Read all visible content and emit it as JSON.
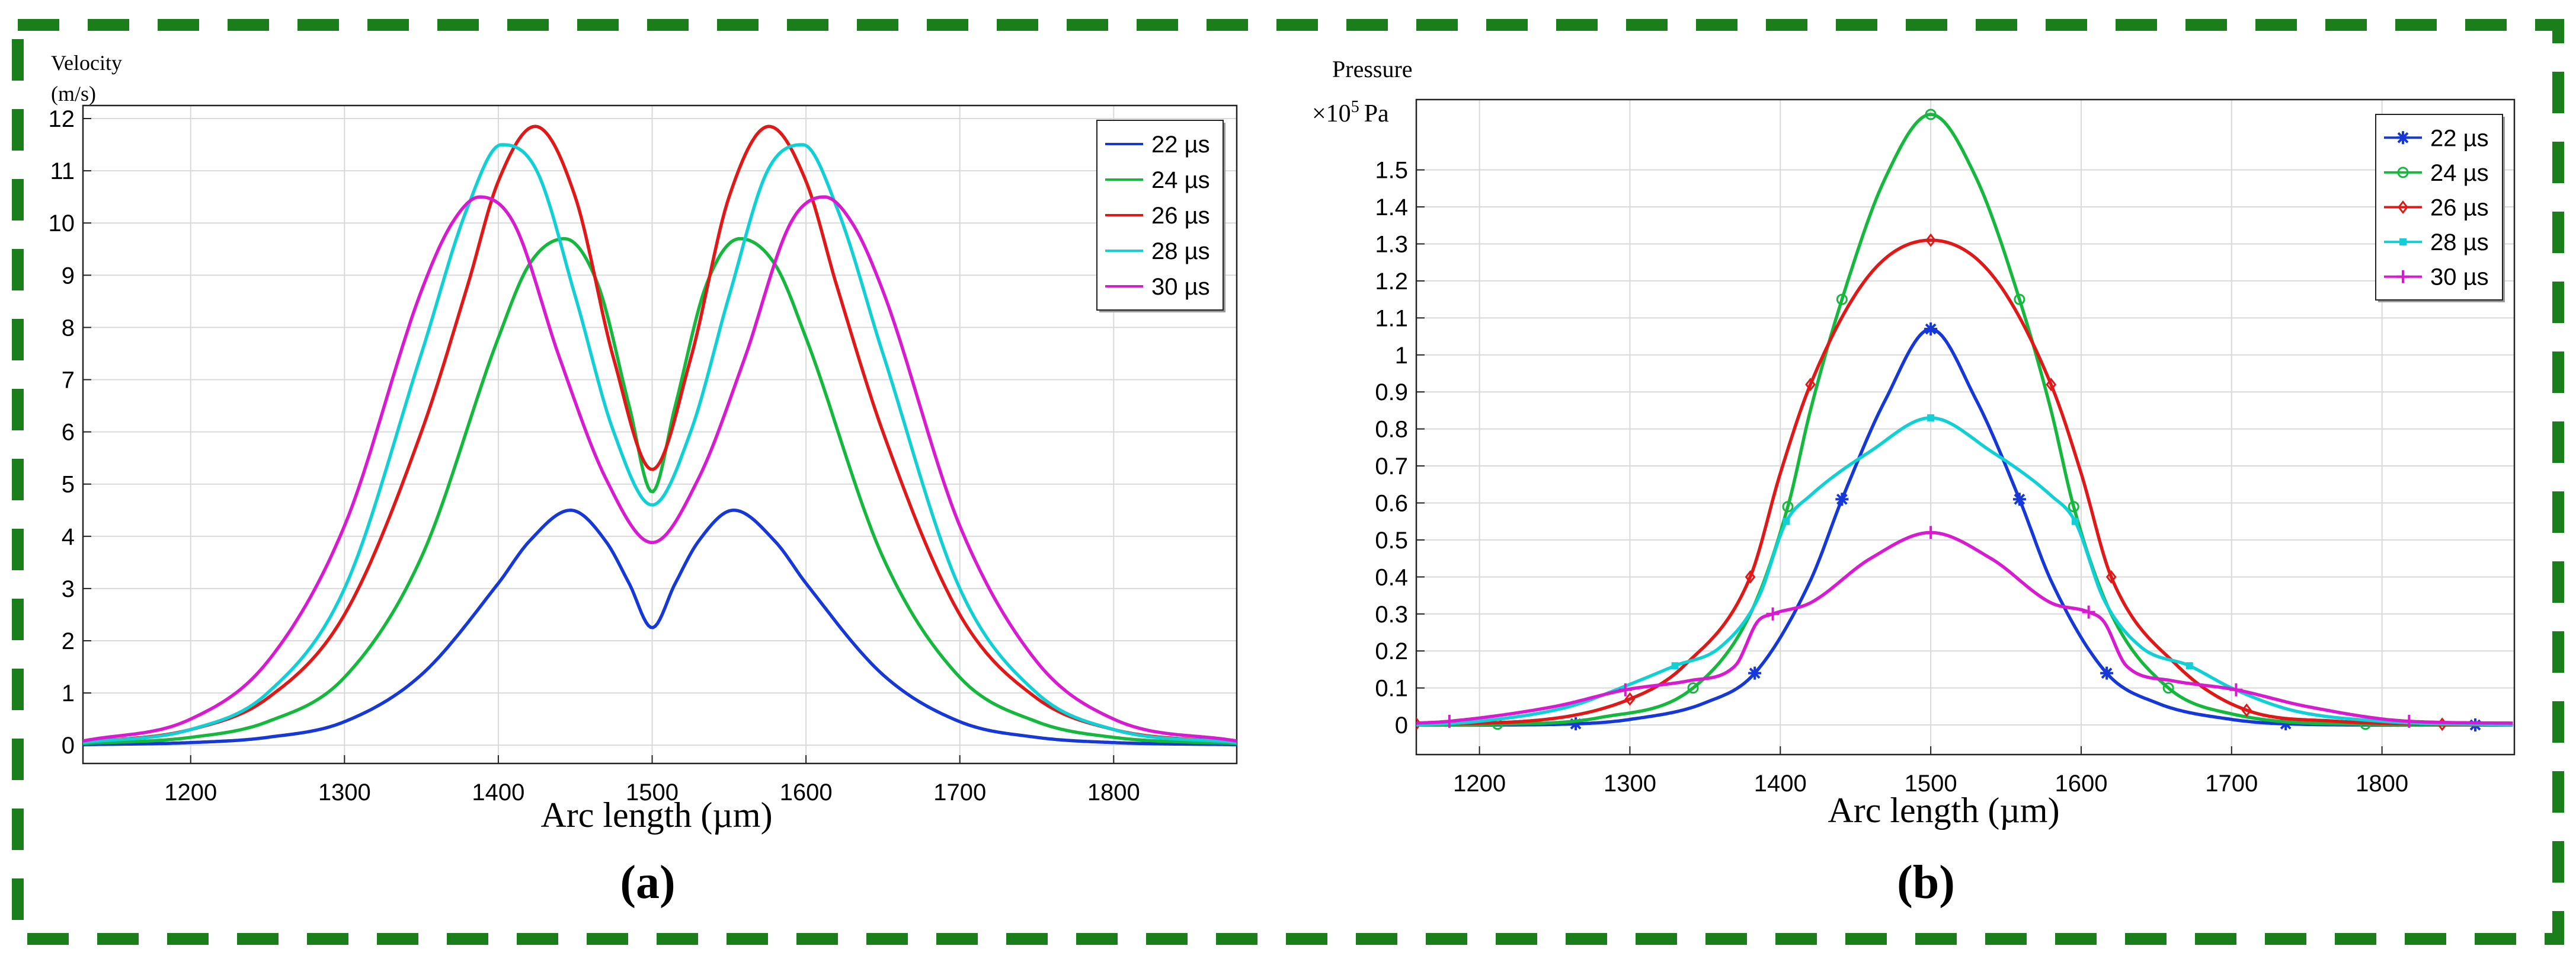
{
  "colors": {
    "border": "#1a7f1a",
    "grid": "#d9d9d9",
    "series": [
      "#1638d8",
      "#14b83c",
      "#e01818",
      "#10d0d6",
      "#d81ad0"
    ]
  },
  "chart_data": [
    {
      "id": "a",
      "type": "line",
      "panel_label": "(a)",
      "ylabel_line1": "Velocity",
      "ylabel_line2": "(m/s)",
      "xlabel": "Arc length (µm)",
      "xlim": [
        1130,
        1880
      ],
      "ylim": [
        -0.35,
        12.25
      ],
      "xticks": [
        1200,
        1300,
        1400,
        1500,
        1600,
        1700,
        1800
      ],
      "yticks": [
        0,
        1,
        2,
        3,
        4,
        5,
        6,
        7,
        8,
        9,
        10,
        11,
        12
      ],
      "legend_position": "top-right",
      "series": [
        {
          "name": "22 µs",
          "x": [
            1130,
            1200,
            1250,
            1300,
            1350,
            1400,
            1420,
            1447,
            1470,
            1485,
            1500,
            1515,
            1530,
            1553,
            1580,
            1600,
            1650,
            1700,
            1750,
            1800,
            1880
          ],
          "values": [
            0.01,
            0.05,
            0.15,
            0.45,
            1.35,
            3.1,
            3.9,
            4.5,
            3.9,
            3.1,
            2.25,
            3.1,
            3.9,
            4.5,
            3.9,
            3.1,
            1.35,
            0.45,
            0.15,
            0.05,
            0.01
          ]
        },
        {
          "name": "24 µs",
          "x": [
            1130,
            1200,
            1250,
            1300,
            1350,
            1400,
            1420,
            1443,
            1465,
            1485,
            1500,
            1515,
            1535,
            1557,
            1580,
            1600,
            1650,
            1700,
            1750,
            1800,
            1880
          ],
          "values": [
            0.03,
            0.15,
            0.45,
            1.3,
            3.6,
            7.8,
            9.2,
            9.7,
            8.8,
            6.5,
            4.85,
            6.5,
            8.8,
            9.7,
            9.2,
            7.8,
            3.6,
            1.3,
            0.45,
            0.15,
            0.03
          ]
        },
        {
          "name": "26 µs",
          "x": [
            1130,
            1200,
            1250,
            1300,
            1350,
            1380,
            1400,
            1424,
            1450,
            1475,
            1500,
            1525,
            1550,
            1576,
            1600,
            1620,
            1650,
            1700,
            1750,
            1800,
            1880
          ],
          "values": [
            0.05,
            0.3,
            0.9,
            2.5,
            6.0,
            8.8,
            10.8,
            11.85,
            10.5,
            7.4,
            5.28,
            7.4,
            10.5,
            11.85,
            10.8,
            8.8,
            6.0,
            2.5,
            0.9,
            0.3,
            0.05
          ]
        },
        {
          "name": "28 µs",
          "x": [
            1130,
            1200,
            1250,
            1300,
            1350,
            1380,
            1402,
            1425,
            1450,
            1475,
            1500,
            1525,
            1550,
            1575,
            1598,
            1620,
            1650,
            1700,
            1750,
            1800,
            1880
          ],
          "values": [
            0.05,
            0.3,
            1.0,
            3.0,
            7.5,
            10.3,
            11.5,
            11.0,
            8.6,
            6.0,
            4.6,
            6.0,
            8.6,
            11.0,
            11.5,
            10.3,
            7.5,
            3.0,
            1.0,
            0.3,
            0.05
          ]
        },
        {
          "name": "30 µs",
          "x": [
            1130,
            1200,
            1250,
            1300,
            1350,
            1370,
            1388,
            1410,
            1440,
            1470,
            1500,
            1530,
            1560,
            1590,
            1612,
            1630,
            1650,
            1700,
            1750,
            1800,
            1880
          ],
          "values": [
            0.08,
            0.5,
            1.6,
            4.2,
            8.7,
            10.0,
            10.5,
            10.0,
            7.4,
            5.1,
            3.88,
            5.1,
            7.4,
            10.0,
            10.5,
            10.0,
            8.7,
            4.2,
            1.6,
            0.5,
            0.08
          ]
        }
      ]
    },
    {
      "id": "b",
      "type": "line",
      "panel_label": "(b)",
      "ylabel_line1": "Pressure",
      "ylabel_unit": "×10",
      "ylabel_exp": "5",
      "ylabel_unit2": "Pa",
      "xlabel": "Arc length (µm)",
      "xlim": [
        1158,
        1888
      ],
      "ylim": [
        -0.08,
        1.69
      ],
      "xticks": [
        1200,
        1300,
        1400,
        1500,
        1600,
        1700,
        1800
      ],
      "yticks": [
        0,
        0.1,
        0.2,
        0.3,
        0.4,
        0.5,
        0.6,
        0.7,
        0.8,
        0.9,
        1,
        1.1,
        1.2,
        1.3,
        1.4,
        1.5
      ],
      "ytick_labels": [
        "0",
        "0.1",
        "0.2",
        "0.3",
        "0.4",
        "0.5",
        "0.6",
        "0.7",
        "0.8",
        "0.9",
        "1",
        "1.1",
        "1.2",
        "1.3",
        "1.4",
        "1.5"
      ],
      "legend_position": "top-right",
      "series": [
        {
          "name": "22 µs",
          "marker": "asterisk",
          "x": [
            1158,
            1200,
            1264,
            1300,
            1350,
            1383,
            1420,
            1441,
            1470,
            1500,
            1530,
            1559,
            1580,
            1617,
            1650,
            1700,
            1736,
            1800,
            1862,
            1888
          ],
          "values": [
            0,
            0,
            0.003,
            0.015,
            0.06,
            0.14,
            0.39,
            0.61,
            0.88,
            1.07,
            0.88,
            0.61,
            0.39,
            0.14,
            0.06,
            0.015,
            0.003,
            0,
            0,
            0
          ],
          "marker_x": [
            1264,
            1383,
            1441,
            1500,
            1559,
            1617,
            1736,
            1862
          ]
        },
        {
          "name": "24 µs",
          "marker": "circle",
          "x": [
            1158,
            1212,
            1280,
            1342,
            1380,
            1405,
            1420,
            1441,
            1470,
            1500,
            1530,
            1559,
            1580,
            1595,
            1620,
            1658,
            1700,
            1789,
            1888
          ],
          "values": [
            0,
            0.002,
            0.02,
            0.1,
            0.3,
            0.59,
            0.85,
            1.15,
            1.48,
            1.65,
            1.48,
            1.15,
            0.85,
            0.59,
            0.3,
            0.1,
            0.03,
            0.002,
            0
          ],
          "marker_x": [
            1212,
            1342,
            1405,
            1441,
            1500,
            1559,
            1595,
            1658,
            1789
          ]
        },
        {
          "name": "26 µs",
          "marker": "diamond",
          "x": [
            1158,
            1230,
            1300,
            1336,
            1380,
            1400,
            1420,
            1460,
            1500,
            1540,
            1580,
            1600,
            1620,
            1664,
            1710,
            1770,
            1840,
            1888
          ],
          "values": [
            0.003,
            0.01,
            0.07,
            0.16,
            0.4,
            0.68,
            0.92,
            1.22,
            1.31,
            1.22,
            0.92,
            0.68,
            0.4,
            0.16,
            0.04,
            0.01,
            0.002,
            0
          ],
          "marker_x": [
            1158,
            1300,
            1380,
            1420,
            1500,
            1580,
            1620,
            1710,
            1840
          ]
        },
        {
          "name": "28 µs",
          "marker": "square",
          "x": [
            1158,
            1200,
            1260,
            1300,
            1330,
            1360,
            1385,
            1404,
            1420,
            1460,
            1500,
            1540,
            1580,
            1596,
            1615,
            1640,
            1672,
            1700,
            1740,
            1800,
            1888
          ],
          "values": [
            0,
            0.01,
            0.05,
            0.11,
            0.16,
            0.21,
            0.34,
            0.55,
            0.62,
            0.74,
            0.83,
            0.74,
            0.62,
            0.55,
            0.34,
            0.21,
            0.16,
            0.1,
            0.04,
            0.01,
            0
          ],
          "marker_x": [
            1330,
            1404,
            1500,
            1596,
            1672
          ]
        },
        {
          "name": "30 µs",
          "marker": "plus",
          "x": [
            1158,
            1180,
            1250,
            1297,
            1340,
            1370,
            1385,
            1395,
            1420,
            1460,
            1500,
            1540,
            1580,
            1605,
            1615,
            1630,
            1660,
            1703,
            1750,
            1818,
            1888
          ],
          "values": [
            0.005,
            0.01,
            0.05,
            0.095,
            0.12,
            0.16,
            0.28,
            0.3,
            0.33,
            0.45,
            0.52,
            0.45,
            0.33,
            0.305,
            0.28,
            0.16,
            0.12,
            0.095,
            0.05,
            0.01,
            0.005
          ],
          "marker_x": [
            1180,
            1297,
            1395,
            1500,
            1605,
            1703,
            1818
          ]
        }
      ]
    }
  ]
}
